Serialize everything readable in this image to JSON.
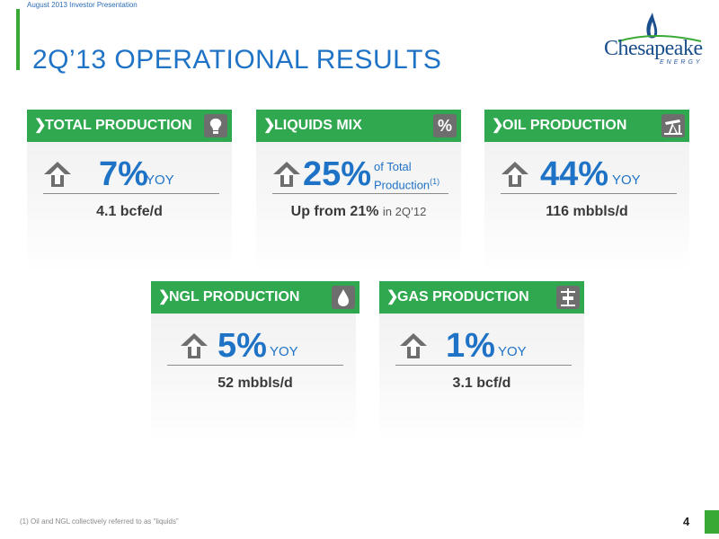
{
  "header": {
    "presentation_label": "August 2013 Investor Presentation",
    "title": "2Q’13 OPERATIONAL RESULTS"
  },
  "logo": {
    "brand": "Chesapeake",
    "tagline": "ENERGY"
  },
  "cards": [
    {
      "title": "TOTAL PRODUCTION",
      "icon": "lightbulb-icon",
      "direction": "up",
      "value": "7%",
      "unit": "YOY",
      "detail": "4.1 bcfe/d"
    },
    {
      "title": "LIQUIDS MIX",
      "icon": "percent-icon",
      "badge": "%",
      "direction": "up",
      "value": "25%",
      "unit_line1": "of Total",
      "unit_line2": "Production",
      "unit_sup": "(1)",
      "detail_strong": "Up from 21%",
      "detail_light": "in 2Q’12"
    },
    {
      "title": "OIL PRODUCTION",
      "icon": "pumpjack-icon",
      "direction": "up",
      "value": "44%",
      "unit": "YOY",
      "detail": "116 mbbls/d"
    },
    {
      "title": "NGL PRODUCTION",
      "icon": "droplet-icon",
      "direction": "up",
      "value": "5%",
      "unit": "YOY",
      "detail": "52 mbbls/d"
    },
    {
      "title": "GAS PRODUCTION",
      "icon": "gas-valve-icon",
      "direction": "up",
      "value": "1%",
      "unit": "YOY",
      "detail": "3.1 bcf/d"
    }
  ],
  "footer": {
    "footnote": "(1) Oil and NGL collectively referred to as “liquids”",
    "page_number": "4"
  },
  "colors": {
    "accent_green": "#2fa84f",
    "value_blue": "#1f73c6",
    "icon_grey": "#6e6e6e"
  }
}
